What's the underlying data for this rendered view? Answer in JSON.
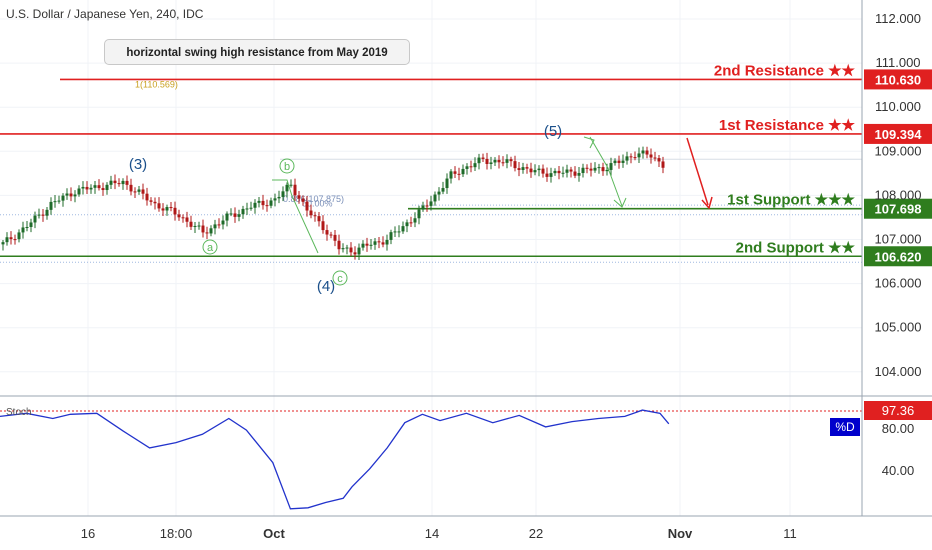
{
  "header": {
    "symbol": "U.S. Dollar / Japanese Yen, 240, IDC"
  },
  "callout": {
    "text": "horizontal swing high resistance from May 2019",
    "ref_label": "1(110.569)"
  },
  "price_axis": {
    "ticks": [
      "112.000",
      "111.000",
      "110.000",
      "109.000",
      "108.000",
      "107.000",
      "106.000",
      "105.000",
      "104.000"
    ],
    "tick_values": [
      112,
      111,
      110,
      109,
      108,
      107,
      106,
      105,
      104
    ]
  },
  "stoch_axis": {
    "ticks": [
      "80.00",
      "40.00"
    ],
    "tick_values": [
      80,
      40
    ],
    "label": "Stoch",
    "value_label": "97.36",
    "series_label": "%D"
  },
  "time_axis": {
    "labels": [
      "16",
      "18:00",
      "Oct",
      "14",
      "22",
      "Nov",
      "11"
    ]
  },
  "levels": [
    {
      "name": "2nd Resistance ★★",
      "value": 110.63,
      "price_label": "110.630",
      "color": "#e02020",
      "kind": "resistance"
    },
    {
      "name": "1st Resistance ★★",
      "value": 109.394,
      "price_label": "109.394",
      "color": "#e02020",
      "kind": "resistance"
    },
    {
      "name": "1st Support ★★★",
      "value": 107.698,
      "price_label": "107.698",
      "color": "#2f7d1e",
      "kind": "support"
    },
    {
      "name": "2nd Support ★★",
      "value": 106.62,
      "price_label": "106.620",
      "color": "#2f7d1e",
      "kind": "support"
    }
  ],
  "waves": [
    {
      "label": "(3)",
      "color": "#1a4f8a"
    },
    {
      "label": "(4)",
      "color": "#1a4f8a"
    },
    {
      "label": "(5)",
      "color": "#1a4f8a"
    },
    {
      "label": "a",
      "color": "#5cb85c"
    },
    {
      "label": "b",
      "color": "#5cb85c"
    },
    {
      "label": "c",
      "color": "#5cb85c"
    }
  ],
  "fib_text": {
    "label_a": "0.886(107.875)",
    "label_b": "50.00%"
  },
  "colors": {
    "up": "#1f6b2a",
    "down": "#b01818",
    "stoch_line": "#2233cc",
    "axis_text": "#333333"
  },
  "chart_data": {
    "type": "candlestick",
    "title": "U.S. Dollar / Japanese Yen, 240, IDC",
    "ylim": [
      103.5,
      112.4
    ],
    "x_ticks": [
      "16",
      "18:00",
      "Oct",
      "14",
      "22",
      "Nov",
      "11"
    ],
    "close_anchors": [
      [
        0,
        106.9
      ],
      [
        6,
        107.3
      ],
      [
        12,
        107.8
      ],
      [
        18,
        108.1
      ],
      [
        24,
        108.2
      ],
      [
        30,
        108.3
      ],
      [
        34,
        108.05
      ],
      [
        38,
        107.8
      ],
      [
        44,
        107.55
      ],
      [
        50,
        107.15
      ],
      [
        56,
        107.5
      ],
      [
        62,
        107.75
      ],
      [
        68,
        107.9
      ],
      [
        72,
        108.25
      ],
      [
        76,
        107.65
      ],
      [
        80,
        107.3
      ],
      [
        84,
        106.8
      ],
      [
        88,
        106.75
      ],
      [
        92,
        106.9
      ],
      [
        96,
        107.0
      ],
      [
        100,
        107.3
      ],
      [
        104,
        107.6
      ],
      [
        108,
        108.0
      ],
      [
        112,
        108.45
      ],
      [
        116,
        108.65
      ],
      [
        120,
        108.8
      ],
      [
        126,
        108.75
      ],
      [
        132,
        108.55
      ],
      [
        138,
        108.5
      ],
      [
        144,
        108.55
      ],
      [
        150,
        108.62
      ],
      [
        154,
        108.75
      ],
      [
        158,
        108.95
      ],
      [
        162,
        108.9
      ],
      [
        165,
        108.7
      ]
    ],
    "stoch_d": {
      "range": [
        0,
        100
      ],
      "points": [
        [
          0,
          92
        ],
        [
          6,
          95
        ],
        [
          12,
          90
        ],
        [
          16,
          94
        ],
        [
          22,
          95
        ],
        [
          28,
          78
        ],
        [
          34,
          62
        ],
        [
          40,
          67
        ],
        [
          46,
          75
        ],
        [
          52,
          90
        ],
        [
          56,
          79
        ],
        [
          62,
          48
        ],
        [
          66,
          4
        ],
        [
          70,
          5
        ],
        [
          74,
          10
        ],
        [
          78,
          14
        ],
        [
          80,
          25
        ],
        [
          84,
          42
        ],
        [
          88,
          62
        ],
        [
          92,
          86
        ],
        [
          96,
          94
        ],
        [
          100,
          88
        ],
        [
          106,
          95
        ],
        [
          112,
          86
        ],
        [
          118,
          93
        ],
        [
          124,
          82
        ],
        [
          130,
          87
        ],
        [
          136,
          90
        ],
        [
          142,
          92
        ],
        [
          146,
          98
        ],
        [
          150,
          95
        ],
        [
          152,
          85
        ]
      ]
    }
  }
}
